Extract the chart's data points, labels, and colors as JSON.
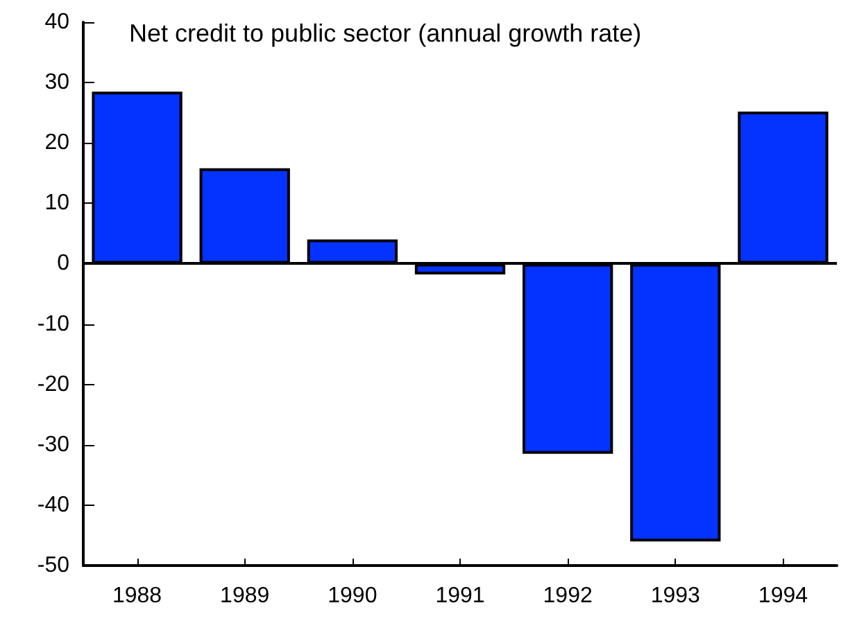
{
  "chart_data": {
    "type": "bar",
    "title": "Net credit to public sector (annual growth rate)",
    "categories": [
      "1988",
      "1989",
      "1990",
      "1991",
      "1992",
      "1993",
      "1994"
    ],
    "values": [
      28.5,
      15.8,
      4.0,
      -1.8,
      -31.5,
      -46.0,
      25.2
    ],
    "color": "#0433ff",
    "ylim": [
      -50,
      40
    ],
    "yticks": [
      -50,
      -40,
      -30,
      -20,
      -10,
      0,
      10,
      20,
      30,
      40
    ],
    "ref_lines": [
      {
        "axis": "y",
        "value": 0
      }
    ],
    "grid": false
  }
}
